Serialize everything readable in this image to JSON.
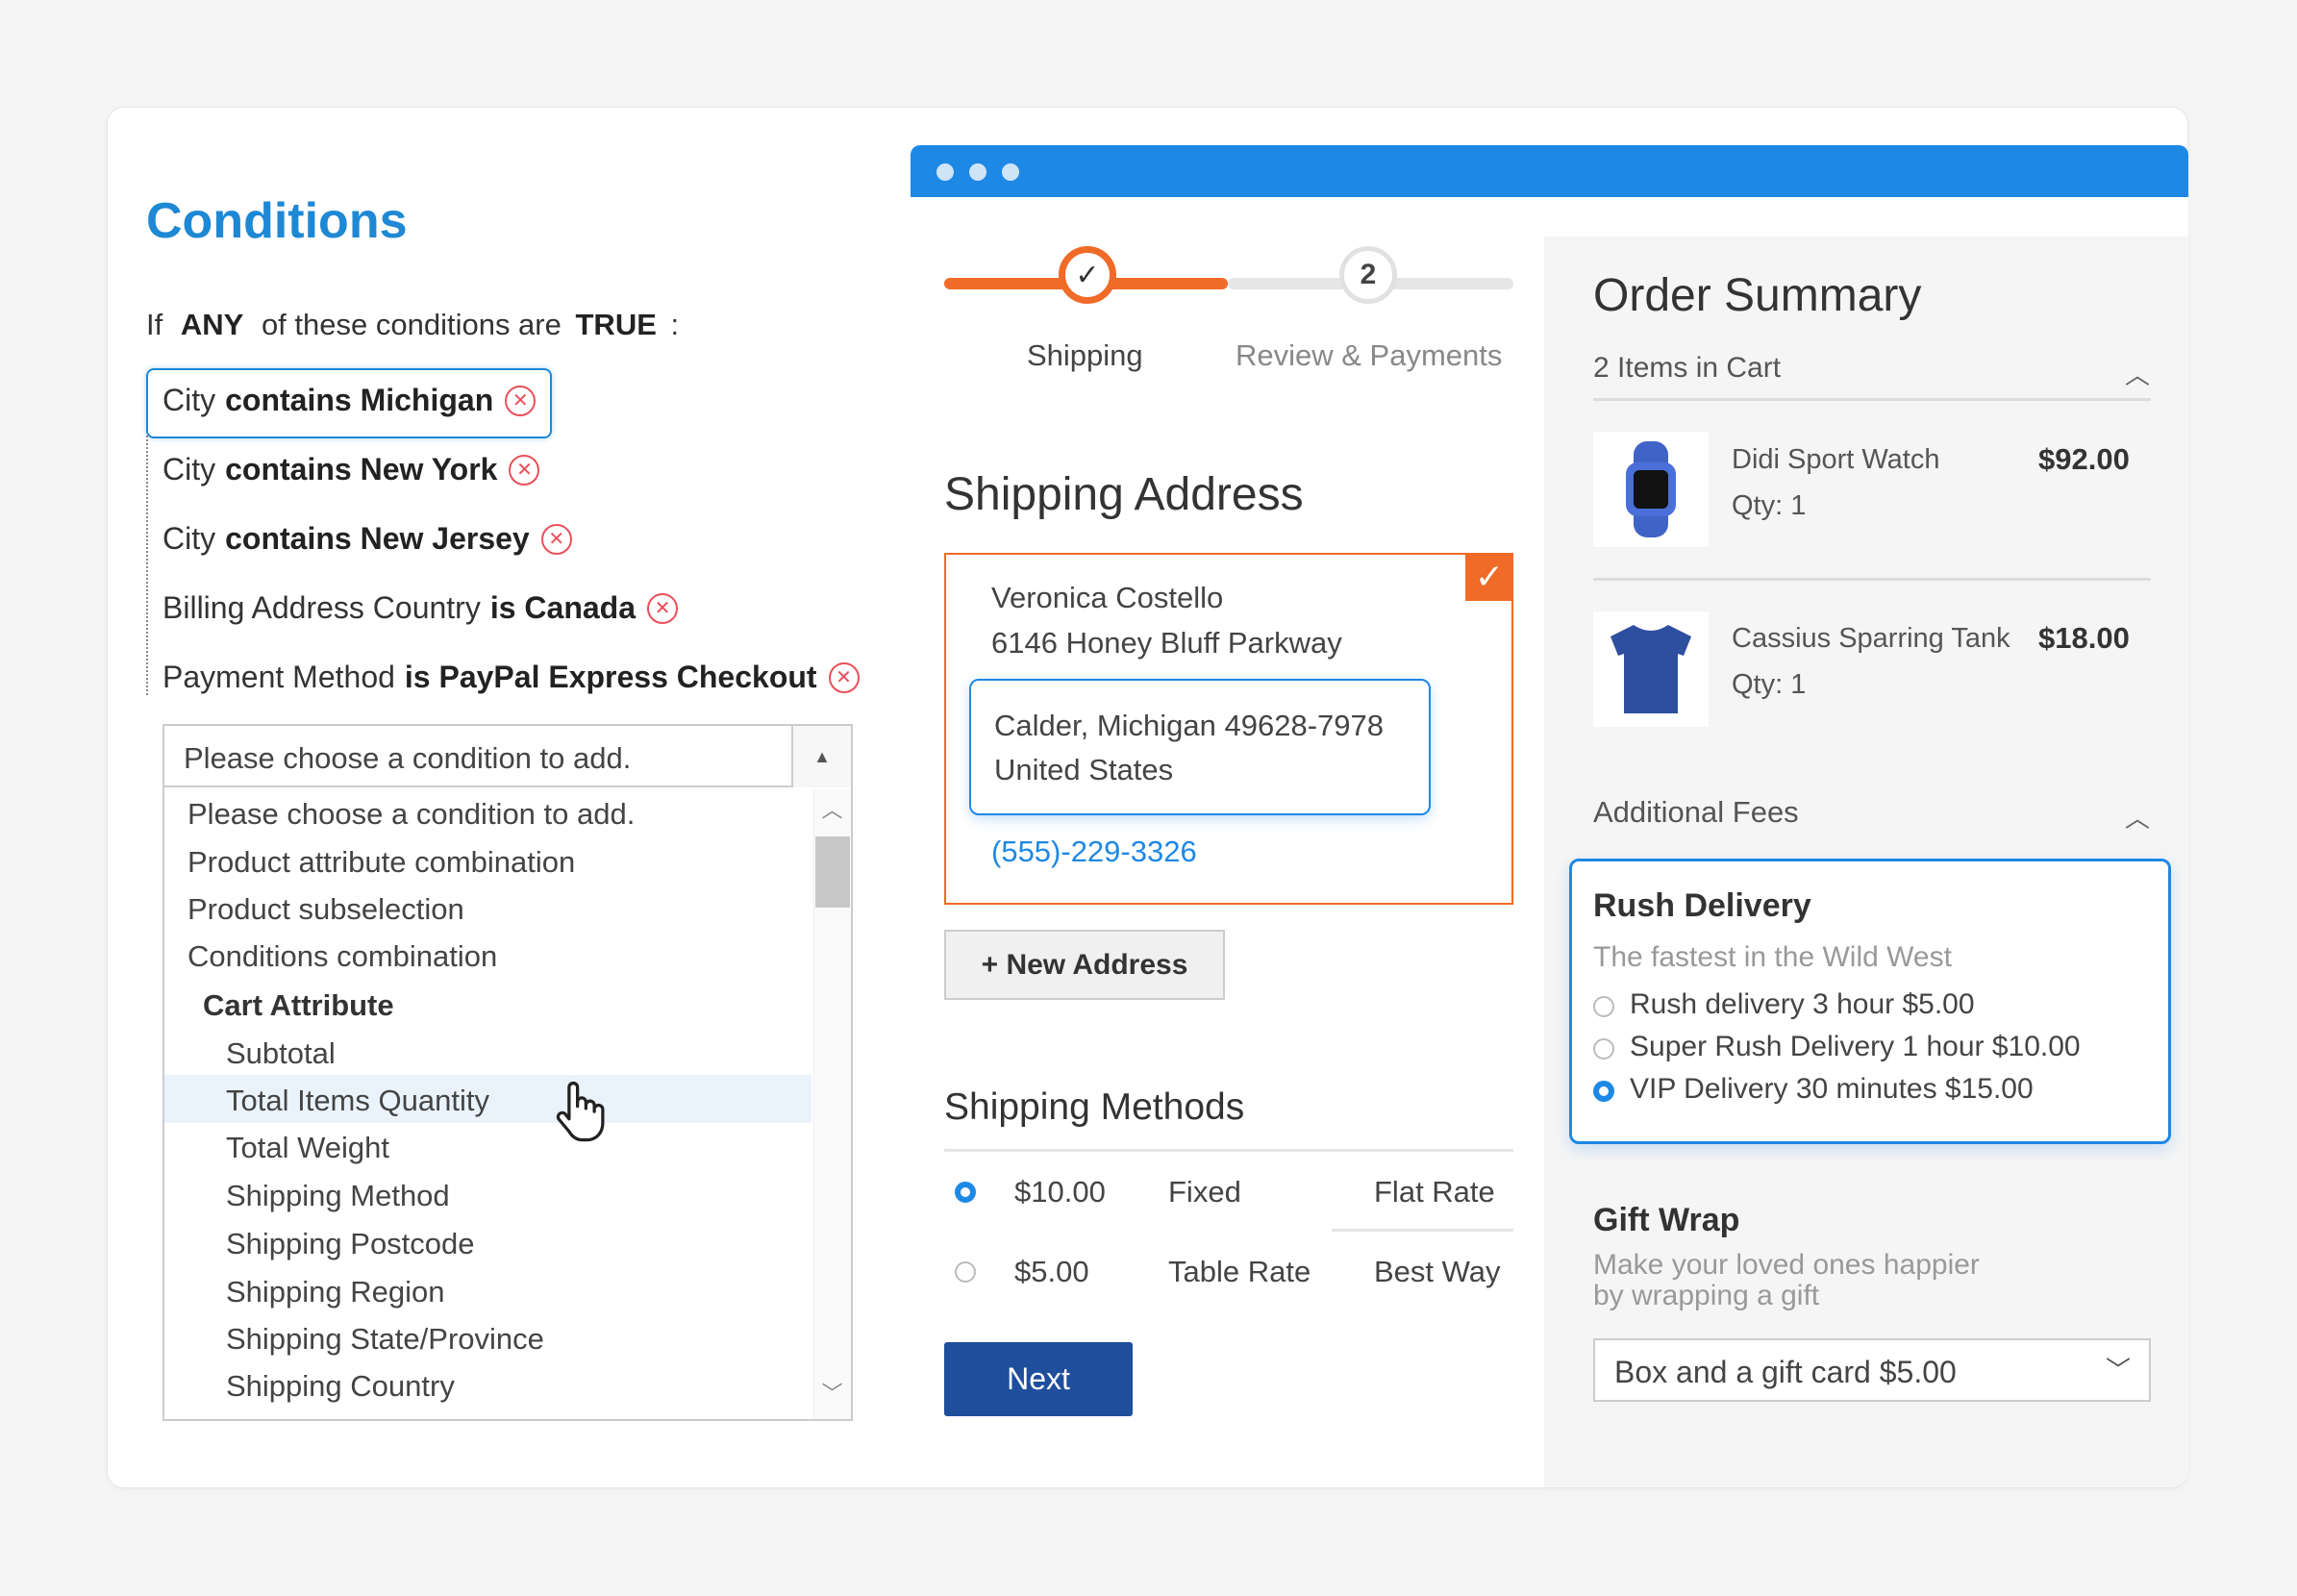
{
  "conditions": {
    "title": "Conditions",
    "intro": {
      "if": "If",
      "any": "ANY",
      "middle": "of these conditions are",
      "true": "TRUE",
      "colon": ":"
    },
    "items": [
      {
        "prefix": "City",
        "bold": "contains Michigan"
      },
      {
        "prefix": "City",
        "bold": "contains New York"
      },
      {
        "prefix": "City",
        "bold": "contains New Jersey"
      },
      {
        "prefix": "Billing Address Country",
        "bold": "is Canada"
      },
      {
        "prefix": "Payment Method",
        "bold": "is PayPal Express Checkout"
      }
    ],
    "remove_symbol": "✕",
    "select": {
      "value": "Please choose a condition to add.",
      "options": [
        "Please choose a condition to add.",
        "Product attribute combination",
        "Product subselection",
        "Conditions combination"
      ],
      "group": "Cart Attribute",
      "group_options": [
        "Subtotal",
        "Total Items Quantity",
        "Total Weight",
        "Shipping Method",
        "Shipping Postcode",
        "Shipping Region",
        "Shipping State/Province",
        "Shipping Country"
      ],
      "highlighted_index": 1
    }
  },
  "checkout": {
    "steps": [
      {
        "label": "Shipping",
        "symbol": "✓",
        "state": "done"
      },
      {
        "label": "Review & Payments",
        "symbol": "2",
        "state": "pending"
      }
    ],
    "shipping_address": {
      "heading": "Shipping Address",
      "name": "Veronica Costello",
      "street": "6146 Honey Bluff Parkway",
      "city_line": "Calder, Michigan 49628-7978",
      "country": "United States",
      "phone": "(555)-229-3326",
      "selected_symbol": "✓"
    },
    "new_address_button": "+ New Address",
    "methods": {
      "heading": "Shipping Methods",
      "rows": [
        {
          "price": "$10.00",
          "method": "Fixed",
          "carrier": "Flat Rate",
          "selected": true
        },
        {
          "price": "$5.00",
          "method": "Table Rate",
          "carrier": "Best Way",
          "selected": false
        }
      ]
    },
    "next_button": "Next"
  },
  "summary": {
    "heading": "Order Summary",
    "items_count": "2 Items in Cart",
    "products": [
      {
        "name": "Didi Sport Watch",
        "qty": "Qty: 1",
        "price": "$92.00"
      },
      {
        "name": "Cassius Sparring Tank",
        "qty": "Qty: 1",
        "price": "$18.00"
      }
    ],
    "fees_label": "Additional Fees",
    "rush": {
      "title": "Rush Delivery",
      "subtitle": "The fastest in the Wild West",
      "options": [
        {
          "label": "Rush delivery 3 hour $5.00",
          "selected": false
        },
        {
          "label": "Super Rush Delivery 1 hour $10.00",
          "selected": false
        },
        {
          "label": "VIP Delivery 30 minutes $15.00",
          "selected": true
        }
      ]
    },
    "gift": {
      "title": "Gift Wrap",
      "subtitle_1": "Make your loved ones happier",
      "subtitle_2": "by wrapping a gift",
      "value": "Box and a gift card $5.00"
    }
  },
  "colors": {
    "accent_blue": "#1e88e5",
    "accent_orange": "#f06a28",
    "title_blue": "#1e88d5",
    "remove_red": "#e8505b",
    "next_button": "#1e4e9c"
  },
  "icons": [
    "remove-icon",
    "hand-pointer-icon",
    "check-icon",
    "chevron-up-icon",
    "chevron-down-icon",
    "watch-icon",
    "tank-top-icon"
  ]
}
